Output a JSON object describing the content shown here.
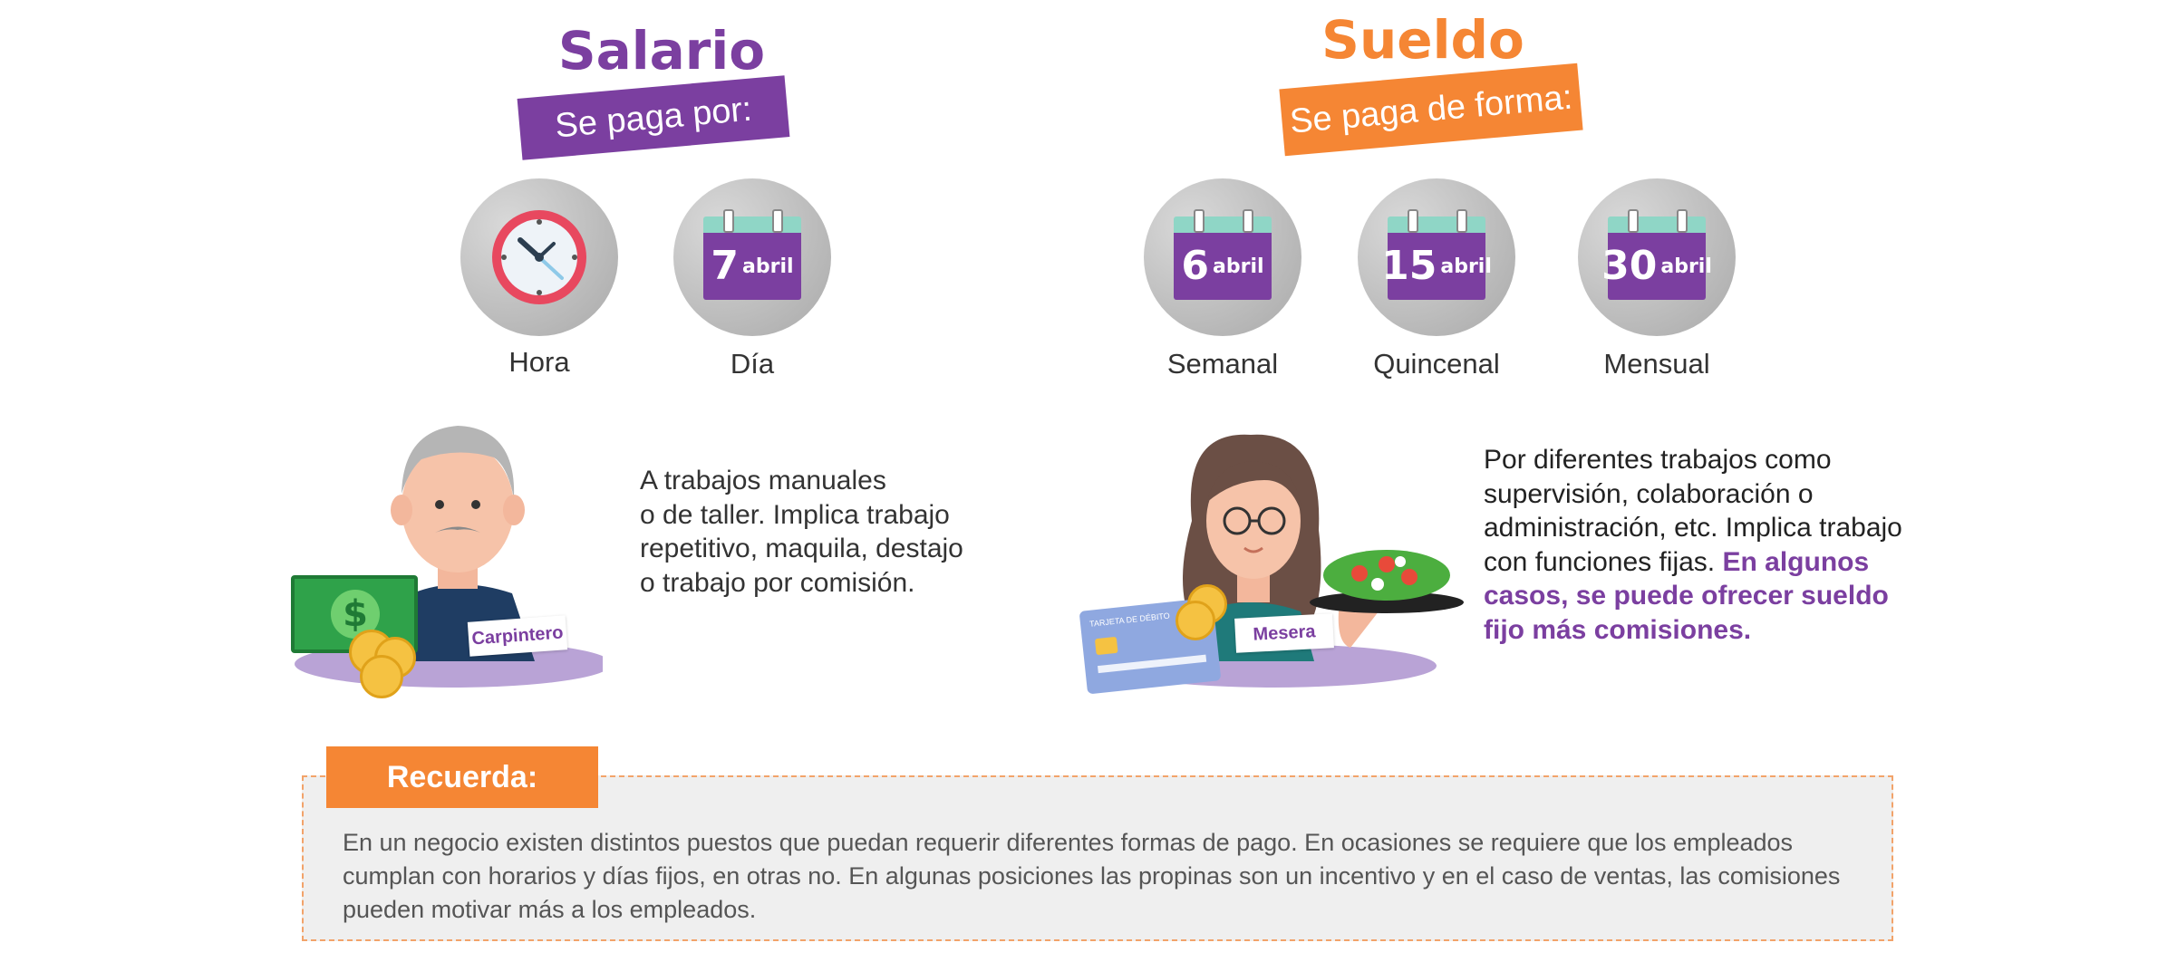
{
  "salario": {
    "title": "Salario",
    "ribbon": "Se paga por:",
    "options": [
      {
        "label": "Hora",
        "icon": "clock-icon"
      },
      {
        "label": "Día",
        "icon": "calendar-icon",
        "day": "7",
        "month": "abril"
      }
    ],
    "illustration": {
      "tag": "Carpintero"
    },
    "description": "A trabajos manuales\no de taller. Implica trabajo\nrepetitivo, maquila, destajo\no trabajo por comisión."
  },
  "sueldo": {
    "title": "Sueldo",
    "ribbon": "Se paga de forma:",
    "options": [
      {
        "label": "Semanal",
        "icon": "calendar-icon",
        "day": "6",
        "month": "abril"
      },
      {
        "label": "Quincenal",
        "icon": "calendar-icon",
        "day": "15",
        "month": "abril"
      },
      {
        "label": "Mensual",
        "icon": "calendar-icon",
        "day": "30",
        "month": "abril"
      }
    ],
    "illustration": {
      "tag": "Mesera",
      "card_label": "TARJETA DE DÉBITO"
    },
    "description_plain": "Por diferentes trabajos como\nsupervisión, colaboración o\nadministración, etc. Implica trabajo\ncon funciones fijas. ",
    "description_highlight": "En algunos\ncasos, se puede ofrecer sueldo\nfijo más comisiones."
  },
  "reminder": {
    "title": "Recuerda:",
    "text": "En un negocio existen distintos puestos que puedan requerir diferentes formas de pago. En ocasiones se requiere que los empleados cumplan con horarios y días fijos, en otras no. En algunas posiciones las propinas son un incentivo y en el caso de ventas, las comisiones pueden motivar más a los empleados."
  },
  "colors": {
    "purple": "#7b3fa0",
    "orange": "#f58634",
    "mint": "#8fd6c6",
    "reminder_bg": "#efefef"
  }
}
